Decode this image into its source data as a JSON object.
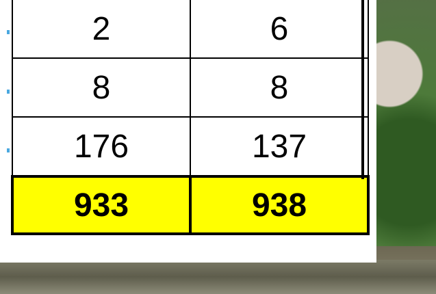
{
  "table": {
    "rows": [
      [
        2,
        6
      ],
      [
        8,
        8
      ],
      [
        176,
        137
      ]
    ],
    "totals": [
      933,
      938
    ]
  }
}
